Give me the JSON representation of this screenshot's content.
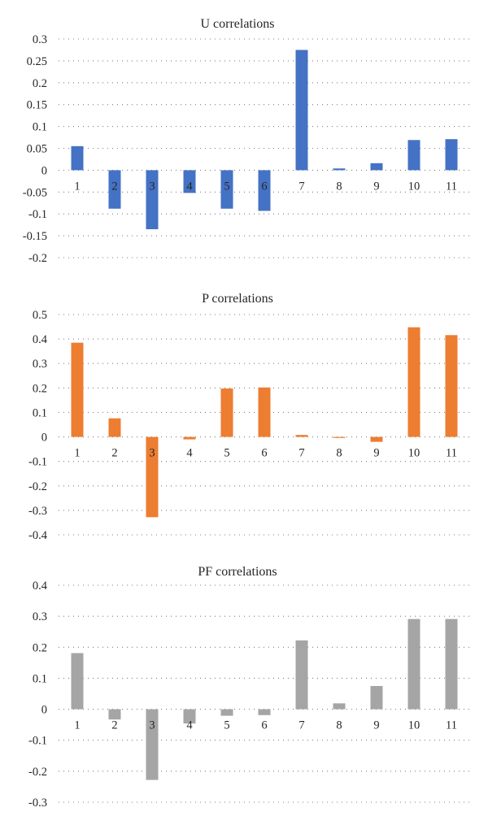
{
  "colors": {
    "background": "#ffffff",
    "gridline": "#7f7f7f",
    "text": "#262626"
  },
  "chart_data": [
    {
      "type": "bar",
      "title": "U correlations",
      "xlabel": "",
      "ylabel": "",
      "categories": [
        "1",
        "2",
        "3",
        "4",
        "5",
        "6",
        "7",
        "8",
        "9",
        "10",
        "11"
      ],
      "yticks": [
        "0.3",
        "0.25",
        "0.2",
        "0.15",
        "0.1",
        "0.05",
        "0",
        "-0.05",
        "-0.1",
        "-0.15",
        "-0.2"
      ],
      "ylim": [
        -0.2,
        0.3
      ],
      "grid": true,
      "legend": "none",
      "series": [
        {
          "color": "#4472c4",
          "values": [
            0.055,
            -0.088,
            -0.135,
            -0.052,
            -0.088,
            -0.093,
            0.275,
            0.004,
            0.016,
            0.069,
            0.071
          ]
        }
      ]
    },
    {
      "type": "bar",
      "title": "P correlations",
      "xlabel": "",
      "ylabel": "",
      "categories": [
        "1",
        "2",
        "3",
        "4",
        "5",
        "6",
        "7",
        "8",
        "9",
        "10",
        "11"
      ],
      "yticks": [
        "0.5",
        "0.4",
        "0.3",
        "0.2",
        "0.1",
        "0",
        "-0.1",
        "-0.2",
        "-0.3",
        "-0.4"
      ],
      "ylim": [
        -0.4,
        0.5
      ],
      "grid": true,
      "legend": "none",
      "series": [
        {
          "color": "#ed7d31",
          "values": [
            0.385,
            0.076,
            -0.328,
            -0.01,
            0.198,
            0.202,
            0.008,
            -0.004,
            -0.02,
            0.448,
            0.416
          ]
        }
      ]
    },
    {
      "type": "bar",
      "title": "PF correlations",
      "xlabel": "",
      "ylabel": "",
      "categories": [
        "1",
        "2",
        "3",
        "4",
        "5",
        "6",
        "7",
        "8",
        "9",
        "10",
        "11"
      ],
      "yticks": [
        "0.4",
        "0.3",
        "0.2",
        "0.1",
        "0",
        "-0.1",
        "-0.2",
        "-0.3"
      ],
      "ylim": [
        -0.3,
        0.4
      ],
      "grid": true,
      "legend": "none",
      "series": [
        {
          "color": "#a5a5a5",
          "values": [
            0.181,
            -0.033,
            -0.228,
            -0.046,
            -0.021,
            -0.019,
            0.222,
            0.019,
            0.075,
            0.291,
            0.291
          ]
        }
      ]
    }
  ]
}
